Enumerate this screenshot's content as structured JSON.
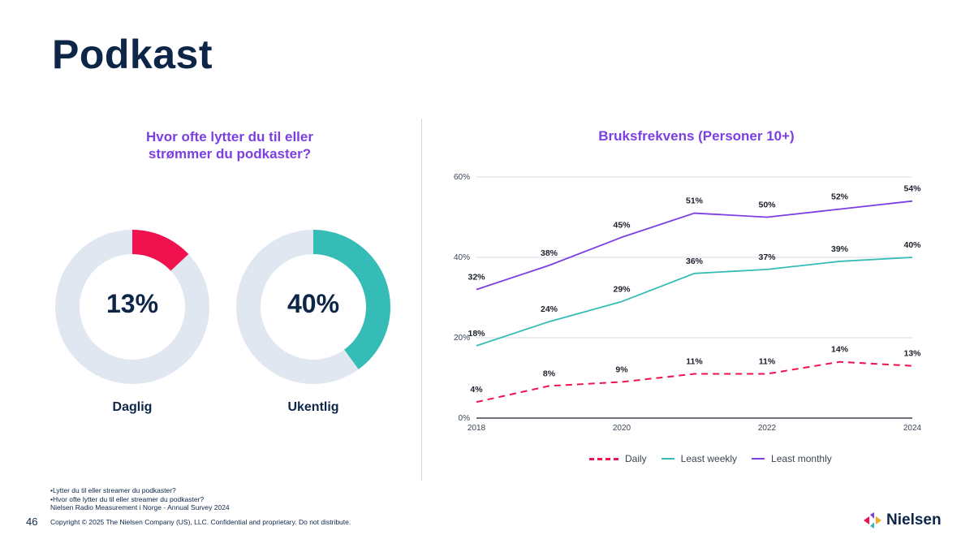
{
  "page": {
    "title": "Podkast",
    "page_number": "46",
    "copyright": "Copyright © 2025 The Nielsen Company (US), LLC. Confidential and proprietary. Do not distribute.",
    "footnotes": [
      "•Lytter du til eller streamer du podkaster?",
      "•Hvor ofte lytter du til eller streamer du podkaster?",
      "Nielsen Radio Measurement i Norge - Annual Survey 2024"
    ],
    "logo_text": "Nielsen"
  },
  "left_panel": {
    "heading_line1": "Hvor ofte lytter du til eller",
    "heading_line2": "strømmer du podkaster?",
    "track_color": "#e1e7f0"
  },
  "right_panel": {
    "heading": "Bruksfrekvens (Personer 10+)"
  },
  "chart_data": [
    {
      "type": "pie",
      "variant": "donut",
      "items": [
        {
          "label": "Daglig",
          "value": 13,
          "display": "13%",
          "color": "#f0114f"
        },
        {
          "label": "Ukentlig",
          "value": 40,
          "display": "40%",
          "color": "#35bcb7"
        }
      ]
    },
    {
      "type": "line",
      "x": [
        2018,
        2019,
        2020,
        2021,
        2022,
        2023,
        2024
      ],
      "x_tick_labels": [
        "2018",
        "2020",
        "2022",
        "2024"
      ],
      "y_tick_labels": [
        "0%",
        "20%",
        "40%",
        "60%"
      ],
      "ylim": [
        0,
        60
      ],
      "grid": "horizontal",
      "legend": "bottom",
      "series": [
        {
          "name": "Daily",
          "values": [
            4,
            8,
            9,
            11,
            11,
            14,
            13
          ],
          "color": "#f0114f",
          "dashed": true
        },
        {
          "name": "Least weekly",
          "values": [
            18,
            24,
            29,
            36,
            37,
            39,
            40
          ],
          "color": "#35bcb7",
          "dashed": false
        },
        {
          "name": "Least monthly",
          "values": [
            32,
            38,
            45,
            51,
            50,
            52,
            54
          ],
          "color": "#7b3fe4",
          "dashed": false
        }
      ]
    }
  ]
}
